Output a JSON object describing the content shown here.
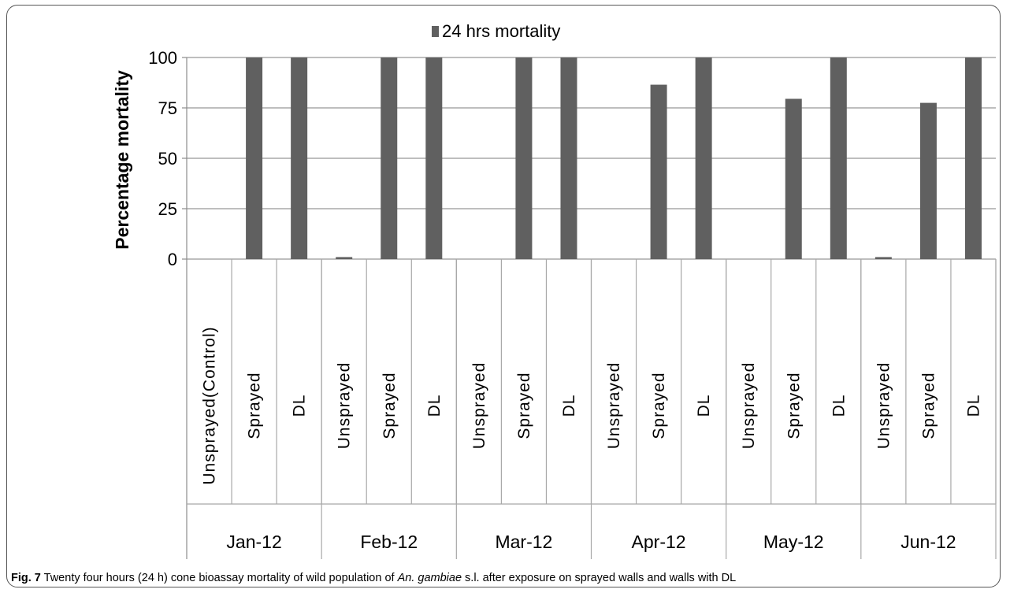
{
  "chart_data": {
    "type": "bar",
    "legend": {
      "label": "24 hrs mortality",
      "placement": "top-center"
    },
    "ylabel": "Percentage mortality",
    "ylim": [
      0,
      100
    ],
    "yticks": [
      0,
      25,
      50,
      75,
      100
    ],
    "grid": true,
    "groups": [
      {
        "label": "Jan-12",
        "categories": [
          "Unsprayed(Control)",
          "Sprayed",
          "DL"
        ],
        "values": [
          0,
          100,
          100
        ]
      },
      {
        "label": "Feb-12",
        "categories": [
          "Unsprayed",
          "Sprayed",
          "DL"
        ],
        "values": [
          1,
          100,
          100
        ]
      },
      {
        "label": "Mar-12",
        "categories": [
          "Unsprayed",
          "Sprayed",
          "DL"
        ],
        "values": [
          0,
          100,
          100
        ]
      },
      {
        "label": "Apr-12",
        "categories": [
          "Unsprayed",
          "Sprayed",
          "DL"
        ],
        "values": [
          0,
          86.5,
          100
        ]
      },
      {
        "label": "May-12",
        "categories": [
          "Unsprayed",
          "Sprayed",
          "DL"
        ],
        "values": [
          0,
          79.5,
          100
        ]
      },
      {
        "label": "Jun-12",
        "categories": [
          "Unsprayed",
          "Sprayed",
          "DL"
        ],
        "values": [
          1,
          77.5,
          100
        ]
      }
    ],
    "colors": {
      "bar": "#606060",
      "grid": "#a8a8a8",
      "axis": "#8c8c8c"
    }
  },
  "caption": {
    "label": "Fig. 7",
    "text_before": "Twenty four hours (24 h) cone bioassay mortality of wild population of ",
    "species": "An. gambiae",
    "text_after": " s.l. after exposure on sprayed walls and walls with DL"
  }
}
